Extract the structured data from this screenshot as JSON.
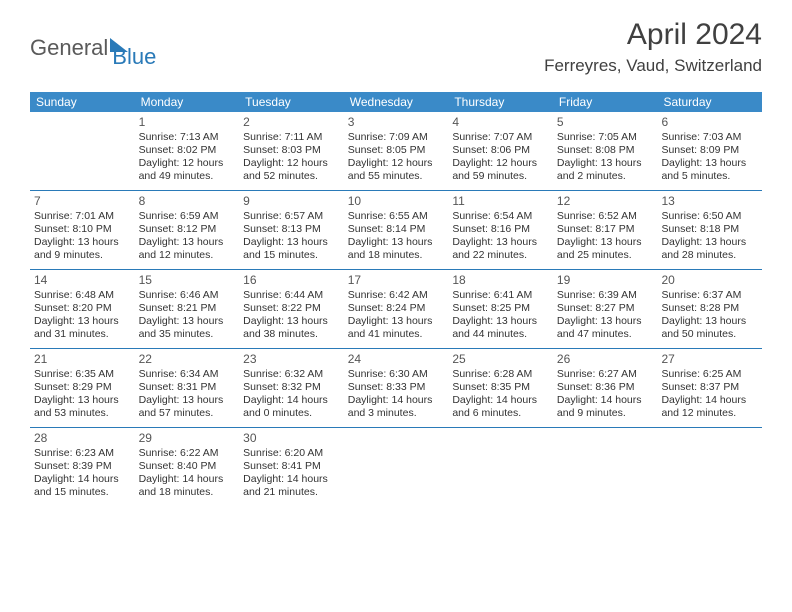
{
  "logo": {
    "part1": "General",
    "part2": "Blue"
  },
  "title": "April 2024",
  "location": "Ferreyres, Vaud, Switzerland",
  "colors": {
    "header_bg": "#3a8ac8",
    "border": "#2a7ab8",
    "text": "#333333",
    "title": "#404040"
  },
  "dow": [
    "Sunday",
    "Monday",
    "Tuesday",
    "Wednesday",
    "Thursday",
    "Friday",
    "Saturday"
  ],
  "weeks": [
    [
      {
        "n": "",
        "sr": "",
        "ss": "",
        "d1": "",
        "d2": ""
      },
      {
        "n": "1",
        "sr": "Sunrise: 7:13 AM",
        "ss": "Sunset: 8:02 PM",
        "d1": "Daylight: 12 hours",
        "d2": "and 49 minutes."
      },
      {
        "n": "2",
        "sr": "Sunrise: 7:11 AM",
        "ss": "Sunset: 8:03 PM",
        "d1": "Daylight: 12 hours",
        "d2": "and 52 minutes."
      },
      {
        "n": "3",
        "sr": "Sunrise: 7:09 AM",
        "ss": "Sunset: 8:05 PM",
        "d1": "Daylight: 12 hours",
        "d2": "and 55 minutes."
      },
      {
        "n": "4",
        "sr": "Sunrise: 7:07 AM",
        "ss": "Sunset: 8:06 PM",
        "d1": "Daylight: 12 hours",
        "d2": "and 59 minutes."
      },
      {
        "n": "5",
        "sr": "Sunrise: 7:05 AM",
        "ss": "Sunset: 8:08 PM",
        "d1": "Daylight: 13 hours",
        "d2": "and 2 minutes."
      },
      {
        "n": "6",
        "sr": "Sunrise: 7:03 AM",
        "ss": "Sunset: 8:09 PM",
        "d1": "Daylight: 13 hours",
        "d2": "and 5 minutes."
      }
    ],
    [
      {
        "n": "7",
        "sr": "Sunrise: 7:01 AM",
        "ss": "Sunset: 8:10 PM",
        "d1": "Daylight: 13 hours",
        "d2": "and 9 minutes."
      },
      {
        "n": "8",
        "sr": "Sunrise: 6:59 AM",
        "ss": "Sunset: 8:12 PM",
        "d1": "Daylight: 13 hours",
        "d2": "and 12 minutes."
      },
      {
        "n": "9",
        "sr": "Sunrise: 6:57 AM",
        "ss": "Sunset: 8:13 PM",
        "d1": "Daylight: 13 hours",
        "d2": "and 15 minutes."
      },
      {
        "n": "10",
        "sr": "Sunrise: 6:55 AM",
        "ss": "Sunset: 8:14 PM",
        "d1": "Daylight: 13 hours",
        "d2": "and 18 minutes."
      },
      {
        "n": "11",
        "sr": "Sunrise: 6:54 AM",
        "ss": "Sunset: 8:16 PM",
        "d1": "Daylight: 13 hours",
        "d2": "and 22 minutes."
      },
      {
        "n": "12",
        "sr": "Sunrise: 6:52 AM",
        "ss": "Sunset: 8:17 PM",
        "d1": "Daylight: 13 hours",
        "d2": "and 25 minutes."
      },
      {
        "n": "13",
        "sr": "Sunrise: 6:50 AM",
        "ss": "Sunset: 8:18 PM",
        "d1": "Daylight: 13 hours",
        "d2": "and 28 minutes."
      }
    ],
    [
      {
        "n": "14",
        "sr": "Sunrise: 6:48 AM",
        "ss": "Sunset: 8:20 PM",
        "d1": "Daylight: 13 hours",
        "d2": "and 31 minutes."
      },
      {
        "n": "15",
        "sr": "Sunrise: 6:46 AM",
        "ss": "Sunset: 8:21 PM",
        "d1": "Daylight: 13 hours",
        "d2": "and 35 minutes."
      },
      {
        "n": "16",
        "sr": "Sunrise: 6:44 AM",
        "ss": "Sunset: 8:22 PM",
        "d1": "Daylight: 13 hours",
        "d2": "and 38 minutes."
      },
      {
        "n": "17",
        "sr": "Sunrise: 6:42 AM",
        "ss": "Sunset: 8:24 PM",
        "d1": "Daylight: 13 hours",
        "d2": "and 41 minutes."
      },
      {
        "n": "18",
        "sr": "Sunrise: 6:41 AM",
        "ss": "Sunset: 8:25 PM",
        "d1": "Daylight: 13 hours",
        "d2": "and 44 minutes."
      },
      {
        "n": "19",
        "sr": "Sunrise: 6:39 AM",
        "ss": "Sunset: 8:27 PM",
        "d1": "Daylight: 13 hours",
        "d2": "and 47 minutes."
      },
      {
        "n": "20",
        "sr": "Sunrise: 6:37 AM",
        "ss": "Sunset: 8:28 PM",
        "d1": "Daylight: 13 hours",
        "d2": "and 50 minutes."
      }
    ],
    [
      {
        "n": "21",
        "sr": "Sunrise: 6:35 AM",
        "ss": "Sunset: 8:29 PM",
        "d1": "Daylight: 13 hours",
        "d2": "and 53 minutes."
      },
      {
        "n": "22",
        "sr": "Sunrise: 6:34 AM",
        "ss": "Sunset: 8:31 PM",
        "d1": "Daylight: 13 hours",
        "d2": "and 57 minutes."
      },
      {
        "n": "23",
        "sr": "Sunrise: 6:32 AM",
        "ss": "Sunset: 8:32 PM",
        "d1": "Daylight: 14 hours",
        "d2": "and 0 minutes."
      },
      {
        "n": "24",
        "sr": "Sunrise: 6:30 AM",
        "ss": "Sunset: 8:33 PM",
        "d1": "Daylight: 14 hours",
        "d2": "and 3 minutes."
      },
      {
        "n": "25",
        "sr": "Sunrise: 6:28 AM",
        "ss": "Sunset: 8:35 PM",
        "d1": "Daylight: 14 hours",
        "d2": "and 6 minutes."
      },
      {
        "n": "26",
        "sr": "Sunrise: 6:27 AM",
        "ss": "Sunset: 8:36 PM",
        "d1": "Daylight: 14 hours",
        "d2": "and 9 minutes."
      },
      {
        "n": "27",
        "sr": "Sunrise: 6:25 AM",
        "ss": "Sunset: 8:37 PM",
        "d1": "Daylight: 14 hours",
        "d2": "and 12 minutes."
      }
    ],
    [
      {
        "n": "28",
        "sr": "Sunrise: 6:23 AM",
        "ss": "Sunset: 8:39 PM",
        "d1": "Daylight: 14 hours",
        "d2": "and 15 minutes."
      },
      {
        "n": "29",
        "sr": "Sunrise: 6:22 AM",
        "ss": "Sunset: 8:40 PM",
        "d1": "Daylight: 14 hours",
        "d2": "and 18 minutes."
      },
      {
        "n": "30",
        "sr": "Sunrise: 6:20 AM",
        "ss": "Sunset: 8:41 PM",
        "d1": "Daylight: 14 hours",
        "d2": "and 21 minutes."
      },
      {
        "n": "",
        "sr": "",
        "ss": "",
        "d1": "",
        "d2": ""
      },
      {
        "n": "",
        "sr": "",
        "ss": "",
        "d1": "",
        "d2": ""
      },
      {
        "n": "",
        "sr": "",
        "ss": "",
        "d1": "",
        "d2": ""
      },
      {
        "n": "",
        "sr": "",
        "ss": "",
        "d1": "",
        "d2": ""
      }
    ]
  ]
}
